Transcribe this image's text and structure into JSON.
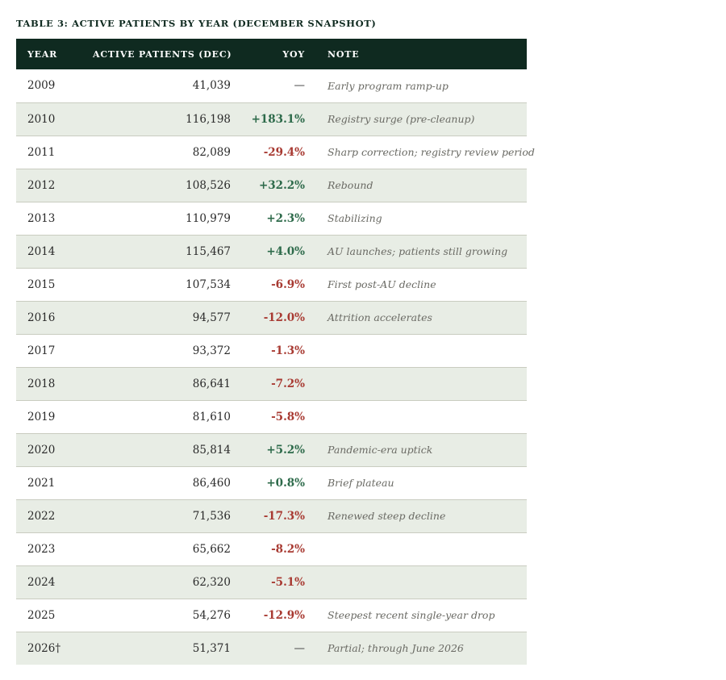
{
  "caption": "TABLE 3: ACTIVE PATIENTS BY YEAR (DECEMBER SNAPSHOT)",
  "headers": {
    "year": "YEAR",
    "patients": "ACTIVE PATIENTS (DEC)",
    "yoy": "YOY",
    "note": "NOTE"
  },
  "colors": {
    "header_bg": "#0f2a20",
    "shaded_row": "#e8ede5",
    "positive": "#2d6a4a",
    "negative": "#a83a32"
  },
  "rows": [
    {
      "year": "2009",
      "patients": "41,039",
      "yoy": "—",
      "note": "Early program ramp-up"
    },
    {
      "year": "2010",
      "patients": "116,198",
      "yoy": "+183.1%",
      "note": "Registry surge (pre-cleanup)"
    },
    {
      "year": "2011",
      "patients": "82,089",
      "yoy": "-29.4%",
      "note": "Sharp correction; registry review period"
    },
    {
      "year": "2012",
      "patients": "108,526",
      "yoy": "+32.2%",
      "note": "Rebound"
    },
    {
      "year": "2013",
      "patients": "110,979",
      "yoy": "+2.3%",
      "note": "Stabilizing"
    },
    {
      "year": "2014",
      "patients": "115,467",
      "yoy": "+4.0%",
      "note": "AU launches; patients still growing"
    },
    {
      "year": "2015",
      "patients": "107,534",
      "yoy": "-6.9%",
      "note": "First post-AU decline"
    },
    {
      "year": "2016",
      "patients": "94,577",
      "yoy": "-12.0%",
      "note": "Attrition accelerates"
    },
    {
      "year": "2017",
      "patients": "93,372",
      "yoy": "-1.3%",
      "note": ""
    },
    {
      "year": "2018",
      "patients": "86,641",
      "yoy": "-7.2%",
      "note": ""
    },
    {
      "year": "2019",
      "patients": "81,610",
      "yoy": "-5.8%",
      "note": ""
    },
    {
      "year": "2020",
      "patients": "85,814",
      "yoy": "+5.2%",
      "note": "Pandemic-era uptick"
    },
    {
      "year": "2021",
      "patients": "86,460",
      "yoy": "+0.8%",
      "note": "Brief plateau"
    },
    {
      "year": "2022",
      "patients": "71,536",
      "yoy": "-17.3%",
      "note": "Renewed steep decline"
    },
    {
      "year": "2023",
      "patients": "65,662",
      "yoy": "-8.2%",
      "note": ""
    },
    {
      "year": "2024",
      "patients": "62,320",
      "yoy": "-5.1%",
      "note": ""
    },
    {
      "year": "2025",
      "patients": "54,276",
      "yoy": "-12.9%",
      "note": "Steepest recent single-year drop"
    },
    {
      "year": "2026†",
      "patients": "51,371",
      "yoy": "—",
      "note": "Partial; through June 2026"
    }
  ]
}
